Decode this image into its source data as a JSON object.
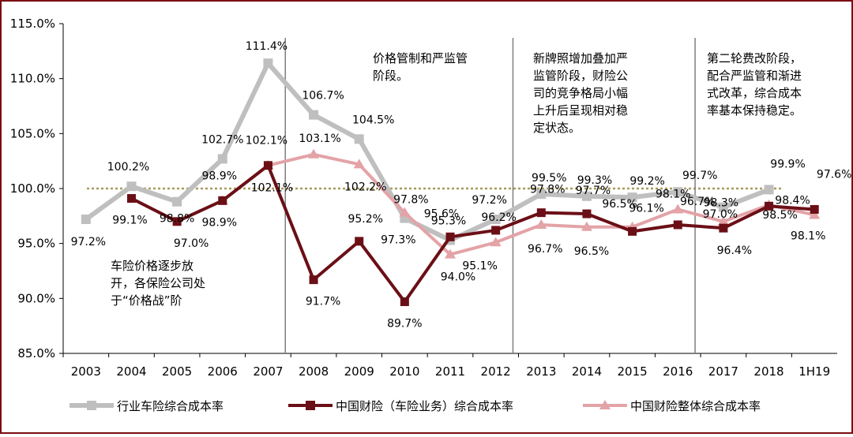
{
  "chart_data": {
    "type": "line",
    "categories": [
      "2003",
      "2004",
      "2005",
      "2006",
      "2007",
      "2008",
      "2009",
      "2010",
      "2011",
      "2012",
      "2013",
      "2014",
      "2015",
      "2016",
      "2017",
      "2018",
      "1H19"
    ],
    "ylim": [
      85,
      115
    ],
    "y_ticks": [
      "85.0%",
      "90.0%",
      "95.0%",
      "100.0%",
      "105.0%",
      "110.0%",
      "115.0%"
    ],
    "y_tick_values": [
      85,
      90,
      95,
      100,
      105,
      110,
      115
    ],
    "reference_line": 100,
    "grid": false,
    "legend_position": "bottom",
    "colors": {
      "frame": "#7b0c14",
      "reference": "#a89a5a",
      "divider": "#7f7f7f",
      "industry": "#bfbfbf",
      "cpic_auto": "#6b0f16",
      "cpic_total": "#e3a3a7"
    },
    "series": [
      {
        "name": "行业车险综合成本率",
        "color": "#bfbfbf",
        "marker": "square",
        "values": [
          97.2,
          100.2,
          98.8,
          102.7,
          111.4,
          106.7,
          104.5,
          97.3,
          95.3,
          97.2,
          99.5,
          99.3,
          99.2,
          99.7,
          98.3,
          99.9,
          null
        ],
        "labels": [
          "97.2%",
          "100.2%",
          "98.8%",
          "102.7%",
          "111.4%",
          "106.7%",
          "104.5%",
          "97.3%",
          "95.3%",
          "97.2%",
          "99.5%",
          "99.3%",
          "99.2%",
          "99.7%",
          "98.3%",
          "99.9%",
          ""
        ]
      },
      {
        "name": "中国财险（车险业务）综合成本率",
        "color": "#6b0f16",
        "marker": "square",
        "values": [
          null,
          99.1,
          97.0,
          98.9,
          102.1,
          91.7,
          95.2,
          89.7,
          95.6,
          96.2,
          97.8,
          97.7,
          96.1,
          96.7,
          96.4,
          98.4,
          98.1
        ],
        "labels": [
          "",
          "99.1%",
          "97.0%",
          "98.9%",
          "102.1%",
          "91.7%",
          "95.2%",
          "89.7%",
          "95.6%",
          "96.2%",
          "97.8%",
          "97.7%",
          "96.1%",
          "96.7%",
          "96.4%",
          "98.4%",
          "98.1%"
        ]
      },
      {
        "name": "中国财险整体综合成本率",
        "color": "#e3a3a7",
        "marker": "triangle",
        "values": [
          null,
          null,
          null,
          98.9,
          102.1,
          103.1,
          102.2,
          97.8,
          94.0,
          95.1,
          96.7,
          96.5,
          96.5,
          98.1,
          97.0,
          98.5,
          97.6
        ],
        "labels": [
          "",
          "",
          "",
          "98.9%",
          "102.1%",
          "103.1%",
          "102.2%",
          "97.8%",
          "94.0%",
          "95.1%",
          "96.7%",
          "96.5%",
          "96.5%",
          "98.1%",
          "97.0%",
          "98.5%",
          "97.6%"
        ]
      }
    ],
    "annotations": [
      {
        "lines": [
          "车险价格逐步放",
          "开，各保险公司处",
          "于“价格战”阶"
        ]
      },
      {
        "lines": [
          "价格管制和严监管",
          "阶段。"
        ]
      },
      {
        "lines": [
          "新牌照增加叠加严",
          "监管阶段，财险公",
          "司的竞争格局小幅",
          "上升后呈现相对稳",
          "定状态。"
        ]
      },
      {
        "lines": [
          "第二轮费改阶段，",
          "配合严监管和渐进",
          "式改革，综合成本",
          "率基本保持稳定。"
        ]
      }
    ]
  }
}
